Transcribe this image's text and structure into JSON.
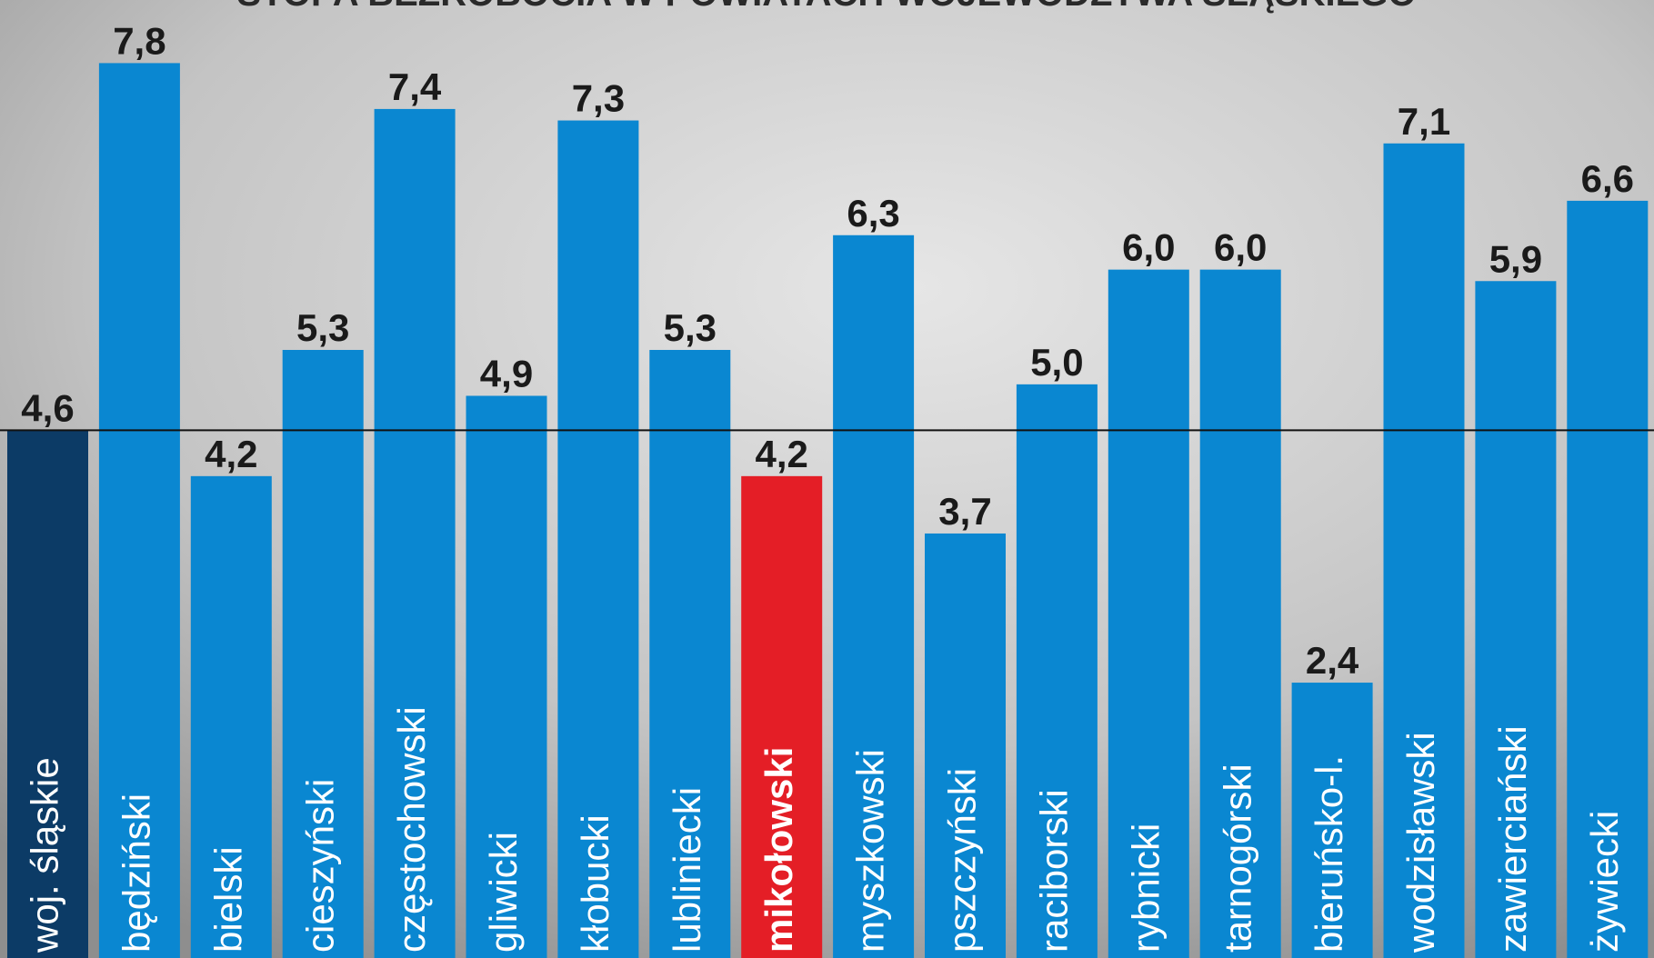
{
  "chart_data": {
    "type": "bar",
    "title": "STOPA BEZROBOCIA W POWIATACH WOJEWÓDZTWA ŚLĄSKIEGO",
    "categories": [
      "woj. śląskie",
      "będziński",
      "bielski",
      "cieszyński",
      "częstochowski",
      "gliwicki",
      "kłobucki",
      "lubliniecki",
      "mikołowski",
      "myszkowski",
      "pszczyński",
      "raciborski",
      "rybnicki",
      "tarnogórski",
      "bieruńsko-l.",
      "wodzisławski",
      "zawierciański",
      "żywiecki"
    ],
    "values": [
      4.6,
      7.8,
      4.2,
      5.3,
      7.4,
      4.9,
      7.3,
      5.3,
      4.2,
      6.3,
      3.7,
      5.0,
      6.0,
      6.0,
      2.4,
      7.1,
      5.9,
      6.6
    ],
    "value_labels": [
      "4,6",
      "7,8",
      "4,2",
      "5,3",
      "7,4",
      "4,9",
      "7,3",
      "5,3",
      "4,2",
      "6,3",
      "3,7",
      "5,0",
      "6,0",
      "6,0",
      "2,4",
      "7,1",
      "5,9",
      "6,6"
    ],
    "colors": [
      "#0c3b66",
      "#0a87d1",
      "#0a87d1",
      "#0a87d1",
      "#0a87d1",
      "#0a87d1",
      "#0a87d1",
      "#0a87d1",
      "#e41e26",
      "#0a87d1",
      "#0a87d1",
      "#0a87d1",
      "#0a87d1",
      "#0a87d1",
      "#0a87d1",
      "#0a87d1",
      "#0a87d1",
      "#0a87d1"
    ],
    "ylim": [
      0,
      8.35
    ],
    "reference_line": 4.6
  }
}
